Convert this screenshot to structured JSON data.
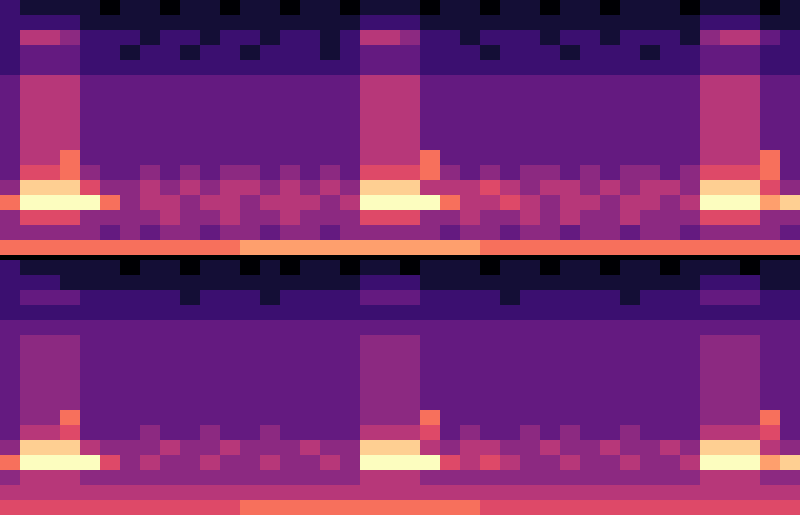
{
  "chart_data": [
    {
      "type": "heatmap",
      "color": "magma",
      "zlim": [
        0,
        10
      ],
      "tick_labels": false,
      "cells": [
        [
          2,
          1,
          1,
          1,
          1,
          0,
          1,
          1,
          0,
          1,
          1,
          0,
          1,
          1,
          0,
          1,
          1,
          0,
          1,
          1,
          1,
          0,
          1,
          1,
          0,
          1,
          1,
          0,
          1,
          1,
          0,
          1,
          1,
          1,
          0,
          1,
          1,
          1,
          0,
          1
        ],
        [
          2,
          2,
          2,
          2,
          1,
          1,
          1,
          1,
          1,
          1,
          1,
          1,
          1,
          1,
          1,
          1,
          1,
          1,
          2,
          2,
          2,
          1,
          1,
          1,
          1,
          1,
          1,
          1,
          1,
          1,
          1,
          1,
          1,
          1,
          1,
          2,
          2,
          2,
          1,
          1
        ],
        [
          2,
          5,
          5,
          4,
          2,
          2,
          2,
          1,
          2,
          2,
          1,
          2,
          2,
          1,
          2,
          2,
          1,
          2,
          5,
          5,
          4,
          2,
          2,
          1,
          2,
          2,
          2,
          1,
          2,
          2,
          1,
          2,
          2,
          2,
          1,
          4,
          5,
          5,
          3,
          2
        ],
        [
          2,
          3,
          3,
          3,
          2,
          2,
          1,
          2,
          2,
          1,
          2,
          2,
          1,
          2,
          2,
          2,
          1,
          2,
          3,
          3,
          3,
          2,
          2,
          2,
          1,
          2,
          2,
          2,
          1,
          2,
          2,
          2,
          1,
          2,
          2,
          3,
          3,
          3,
          2,
          2
        ],
        [
          2,
          3,
          3,
          3,
          2,
          2,
          2,
          2,
          2,
          2,
          2,
          2,
          2,
          2,
          2,
          2,
          2,
          2,
          3,
          3,
          3,
          2,
          2,
          2,
          2,
          2,
          2,
          2,
          2,
          2,
          2,
          2,
          2,
          2,
          2,
          3,
          3,
          3,
          2,
          2
        ],
        [
          3,
          5,
          5,
          5,
          3,
          3,
          3,
          3,
          3,
          3,
          3,
          3,
          3,
          3,
          3,
          3,
          3,
          3,
          5,
          5,
          5,
          3,
          3,
          3,
          3,
          3,
          3,
          3,
          3,
          3,
          3,
          3,
          3,
          3,
          3,
          5,
          5,
          5,
          3,
          3
        ],
        [
          3,
          5,
          5,
          5,
          3,
          3,
          3,
          3,
          3,
          3,
          3,
          3,
          3,
          3,
          3,
          3,
          3,
          3,
          5,
          5,
          5,
          3,
          3,
          3,
          3,
          3,
          3,
          3,
          3,
          3,
          3,
          3,
          3,
          3,
          3,
          5,
          5,
          5,
          3,
          3
        ],
        [
          3,
          5,
          5,
          5,
          3,
          3,
          3,
          3,
          3,
          3,
          3,
          3,
          3,
          3,
          3,
          3,
          3,
          3,
          5,
          5,
          5,
          3,
          3,
          3,
          3,
          3,
          3,
          3,
          3,
          3,
          3,
          3,
          3,
          3,
          3,
          5,
          5,
          5,
          3,
          3
        ],
        [
          3,
          5,
          5,
          5,
          3,
          3,
          3,
          3,
          3,
          3,
          3,
          3,
          3,
          3,
          3,
          3,
          3,
          3,
          5,
          5,
          5,
          3,
          3,
          3,
          3,
          3,
          3,
          3,
          3,
          3,
          3,
          3,
          3,
          3,
          3,
          5,
          5,
          5,
          3,
          3
        ],
        [
          3,
          5,
          5,
          5,
          3,
          3,
          3,
          3,
          3,
          3,
          3,
          3,
          3,
          3,
          3,
          3,
          3,
          3,
          5,
          5,
          5,
          3,
          3,
          3,
          3,
          3,
          3,
          3,
          3,
          3,
          3,
          3,
          3,
          3,
          3,
          5,
          5,
          5,
          3,
          3
        ],
        [
          3,
          5,
          5,
          7,
          3,
          3,
          3,
          3,
          3,
          3,
          3,
          3,
          3,
          3,
          3,
          3,
          3,
          3,
          5,
          5,
          5,
          7,
          3,
          3,
          3,
          3,
          3,
          3,
          3,
          3,
          3,
          3,
          3,
          3,
          3,
          5,
          5,
          5,
          7,
          3
        ],
        [
          3,
          6,
          6,
          7,
          4,
          3,
          3,
          4,
          3,
          4,
          3,
          4,
          4,
          3,
          4,
          3,
          4,
          3,
          6,
          6,
          6,
          7,
          4,
          3,
          4,
          3,
          4,
          4,
          3,
          4,
          3,
          4,
          4,
          3,
          4,
          6,
          6,
          6,
          7,
          3
        ],
        [
          4,
          9,
          9,
          9,
          6,
          4,
          4,
          5,
          4,
          5,
          4,
          5,
          5,
          4,
          5,
          4,
          5,
          4,
          9,
          9,
          9,
          5,
          5,
          5,
          6,
          5,
          4,
          5,
          5,
          4,
          5,
          4,
          5,
          5,
          4,
          9,
          9,
          9,
          6,
          4
        ],
        [
          7,
          10,
          10,
          10,
          10,
          7,
          4,
          5,
          5,
          4,
          5,
          5,
          4,
          5,
          5,
          5,
          4,
          5,
          10,
          10,
          10,
          10,
          7,
          5,
          5,
          6,
          5,
          4,
          5,
          5,
          4,
          5,
          5,
          4,
          5,
          10,
          10,
          10,
          8,
          9
        ],
        [
          4,
          6,
          6,
          6,
          4,
          4,
          4,
          4,
          5,
          4,
          4,
          5,
          4,
          4,
          5,
          4,
          4,
          4,
          6,
          6,
          6,
          4,
          4,
          5,
          4,
          4,
          5,
          4,
          5,
          4,
          4,
          5,
          4,
          4,
          4,
          6,
          6,
          6,
          4,
          4
        ],
        [
          4,
          4,
          4,
          4,
          4,
          3,
          4,
          3,
          4,
          4,
          3,
          4,
          4,
          3,
          4,
          4,
          3,
          4,
          4,
          4,
          4,
          4,
          3,
          4,
          4,
          3,
          4,
          4,
          3,
          4,
          4,
          3,
          4,
          4,
          3,
          4,
          4,
          4,
          4,
          3
        ],
        [
          7,
          7,
          7,
          7,
          7,
          7,
          7,
          7,
          7,
          7,
          7,
          7,
          8,
          8,
          8,
          8,
          8,
          8,
          8,
          8,
          8,
          8,
          8,
          8,
          7,
          7,
          7,
          7,
          7,
          7,
          7,
          7,
          7,
          7,
          7,
          7,
          7,
          7,
          7,
          7
        ]
      ]
    },
    {
      "type": "heatmap",
      "color": "magma",
      "zlim": [
        0,
        10
      ],
      "tick_labels": false,
      "cells": [
        [
          2,
          1,
          1,
          1,
          1,
          1,
          0,
          1,
          1,
          0,
          1,
          1,
          0,
          1,
          0,
          1,
          1,
          0,
          1,
          1,
          0,
          1,
          1,
          1,
          0,
          1,
          1,
          0,
          1,
          1,
          0,
          1,
          1,
          0,
          1,
          1,
          1,
          0,
          1,
          1
        ],
        [
          2,
          2,
          2,
          1,
          1,
          1,
          1,
          1,
          1,
          1,
          1,
          1,
          1,
          1,
          1,
          1,
          1,
          1,
          2,
          2,
          2,
          1,
          1,
          1,
          1,
          1,
          1,
          1,
          1,
          1,
          1,
          1,
          1,
          1,
          1,
          2,
          2,
          2,
          1,
          1
        ],
        [
          2,
          3,
          3,
          3,
          2,
          2,
          2,
          2,
          2,
          1,
          2,
          2,
          2,
          1,
          2,
          2,
          2,
          2,
          3,
          3,
          3,
          2,
          2,
          2,
          2,
          1,
          2,
          2,
          2,
          2,
          2,
          1,
          2,
          2,
          2,
          3,
          3,
          3,
          2,
          2
        ],
        [
          2,
          2,
          2,
          2,
          2,
          2,
          2,
          2,
          2,
          2,
          2,
          2,
          2,
          2,
          2,
          2,
          2,
          2,
          2,
          2,
          2,
          2,
          2,
          2,
          2,
          2,
          2,
          2,
          2,
          2,
          2,
          2,
          2,
          2,
          2,
          2,
          2,
          2,
          2,
          2
        ],
        [
          3,
          3,
          3,
          3,
          3,
          3,
          3,
          3,
          3,
          3,
          3,
          3,
          3,
          3,
          3,
          3,
          3,
          3,
          3,
          3,
          3,
          3,
          3,
          3,
          3,
          3,
          3,
          3,
          3,
          3,
          3,
          3,
          3,
          3,
          3,
          3,
          3,
          3,
          3,
          3
        ],
        [
          3,
          4,
          4,
          4,
          3,
          3,
          3,
          3,
          3,
          3,
          3,
          3,
          3,
          3,
          3,
          3,
          3,
          3,
          4,
          4,
          4,
          3,
          3,
          3,
          3,
          3,
          3,
          3,
          3,
          3,
          3,
          3,
          3,
          3,
          3,
          4,
          4,
          4,
          3,
          3
        ],
        [
          3,
          4,
          4,
          4,
          3,
          3,
          3,
          3,
          3,
          3,
          3,
          3,
          3,
          3,
          3,
          3,
          3,
          3,
          4,
          4,
          4,
          3,
          3,
          3,
          3,
          3,
          3,
          3,
          3,
          3,
          3,
          3,
          3,
          3,
          3,
          4,
          4,
          4,
          3,
          3
        ],
        [
          3,
          4,
          4,
          4,
          3,
          3,
          3,
          3,
          3,
          3,
          3,
          3,
          3,
          3,
          3,
          3,
          3,
          3,
          4,
          4,
          4,
          3,
          3,
          3,
          3,
          3,
          3,
          3,
          3,
          3,
          3,
          3,
          3,
          3,
          3,
          4,
          4,
          4,
          3,
          3
        ],
        [
          3,
          4,
          4,
          4,
          3,
          3,
          3,
          3,
          3,
          3,
          3,
          3,
          3,
          3,
          3,
          3,
          3,
          3,
          4,
          4,
          4,
          3,
          3,
          3,
          3,
          3,
          3,
          3,
          3,
          3,
          3,
          3,
          3,
          3,
          3,
          4,
          4,
          4,
          3,
          3
        ],
        [
          3,
          4,
          4,
          4,
          3,
          3,
          3,
          3,
          3,
          3,
          3,
          3,
          3,
          3,
          3,
          3,
          3,
          3,
          4,
          4,
          4,
          3,
          3,
          3,
          3,
          3,
          3,
          3,
          3,
          3,
          3,
          3,
          3,
          3,
          3,
          4,
          4,
          4,
          3,
          3
        ],
        [
          3,
          4,
          4,
          7,
          3,
          3,
          3,
          3,
          3,
          3,
          3,
          3,
          3,
          3,
          3,
          3,
          3,
          3,
          4,
          4,
          4,
          7,
          3,
          3,
          3,
          3,
          3,
          3,
          3,
          3,
          3,
          3,
          3,
          3,
          3,
          4,
          4,
          4,
          7,
          3
        ],
        [
          3,
          5,
          5,
          6,
          3,
          3,
          3,
          4,
          3,
          3,
          4,
          3,
          3,
          4,
          3,
          3,
          3,
          3,
          5,
          5,
          5,
          6,
          3,
          4,
          3,
          3,
          4,
          3,
          4,
          3,
          3,
          4,
          3,
          3,
          3,
          5,
          5,
          5,
          6,
          3
        ],
        [
          4,
          9,
          9,
          9,
          5,
          4,
          4,
          4,
          5,
          4,
          4,
          5,
          4,
          4,
          4,
          5,
          4,
          4,
          9,
          9,
          9,
          5,
          4,
          5,
          5,
          4,
          4,
          5,
          4,
          4,
          5,
          4,
          4,
          5,
          4,
          9,
          9,
          9,
          5,
          4
        ],
        [
          7,
          10,
          10,
          10,
          10,
          6,
          4,
          5,
          4,
          4,
          5,
          4,
          4,
          5,
          4,
          4,
          5,
          4,
          10,
          10,
          10,
          10,
          6,
          5,
          6,
          5,
          4,
          4,
          5,
          4,
          4,
          5,
          4,
          4,
          5,
          10,
          10,
          10,
          8,
          9
        ],
        [
          4,
          5,
          5,
          5,
          4,
          4,
          4,
          4,
          4,
          4,
          4,
          4,
          4,
          4,
          4,
          4,
          4,
          4,
          5,
          5,
          5,
          4,
          4,
          4,
          4,
          4,
          4,
          4,
          4,
          4,
          4,
          4,
          4,
          4,
          4,
          5,
          5,
          5,
          4,
          4
        ],
        [
          5,
          5,
          5,
          5,
          5,
          5,
          5,
          5,
          5,
          5,
          5,
          5,
          5,
          5,
          5,
          5,
          5,
          5,
          5,
          5,
          5,
          5,
          5,
          5,
          5,
          5,
          5,
          5,
          5,
          5,
          5,
          5,
          5,
          5,
          5,
          5,
          5,
          5,
          5,
          5
        ],
        [
          6,
          6,
          6,
          6,
          6,
          6,
          6,
          6,
          6,
          6,
          6,
          6,
          7,
          7,
          7,
          7,
          7,
          7,
          7,
          7,
          7,
          7,
          7,
          7,
          6,
          6,
          6,
          6,
          6,
          6,
          6,
          6,
          6,
          6,
          6,
          6,
          6,
          6,
          6,
          6
        ]
      ]
    }
  ]
}
